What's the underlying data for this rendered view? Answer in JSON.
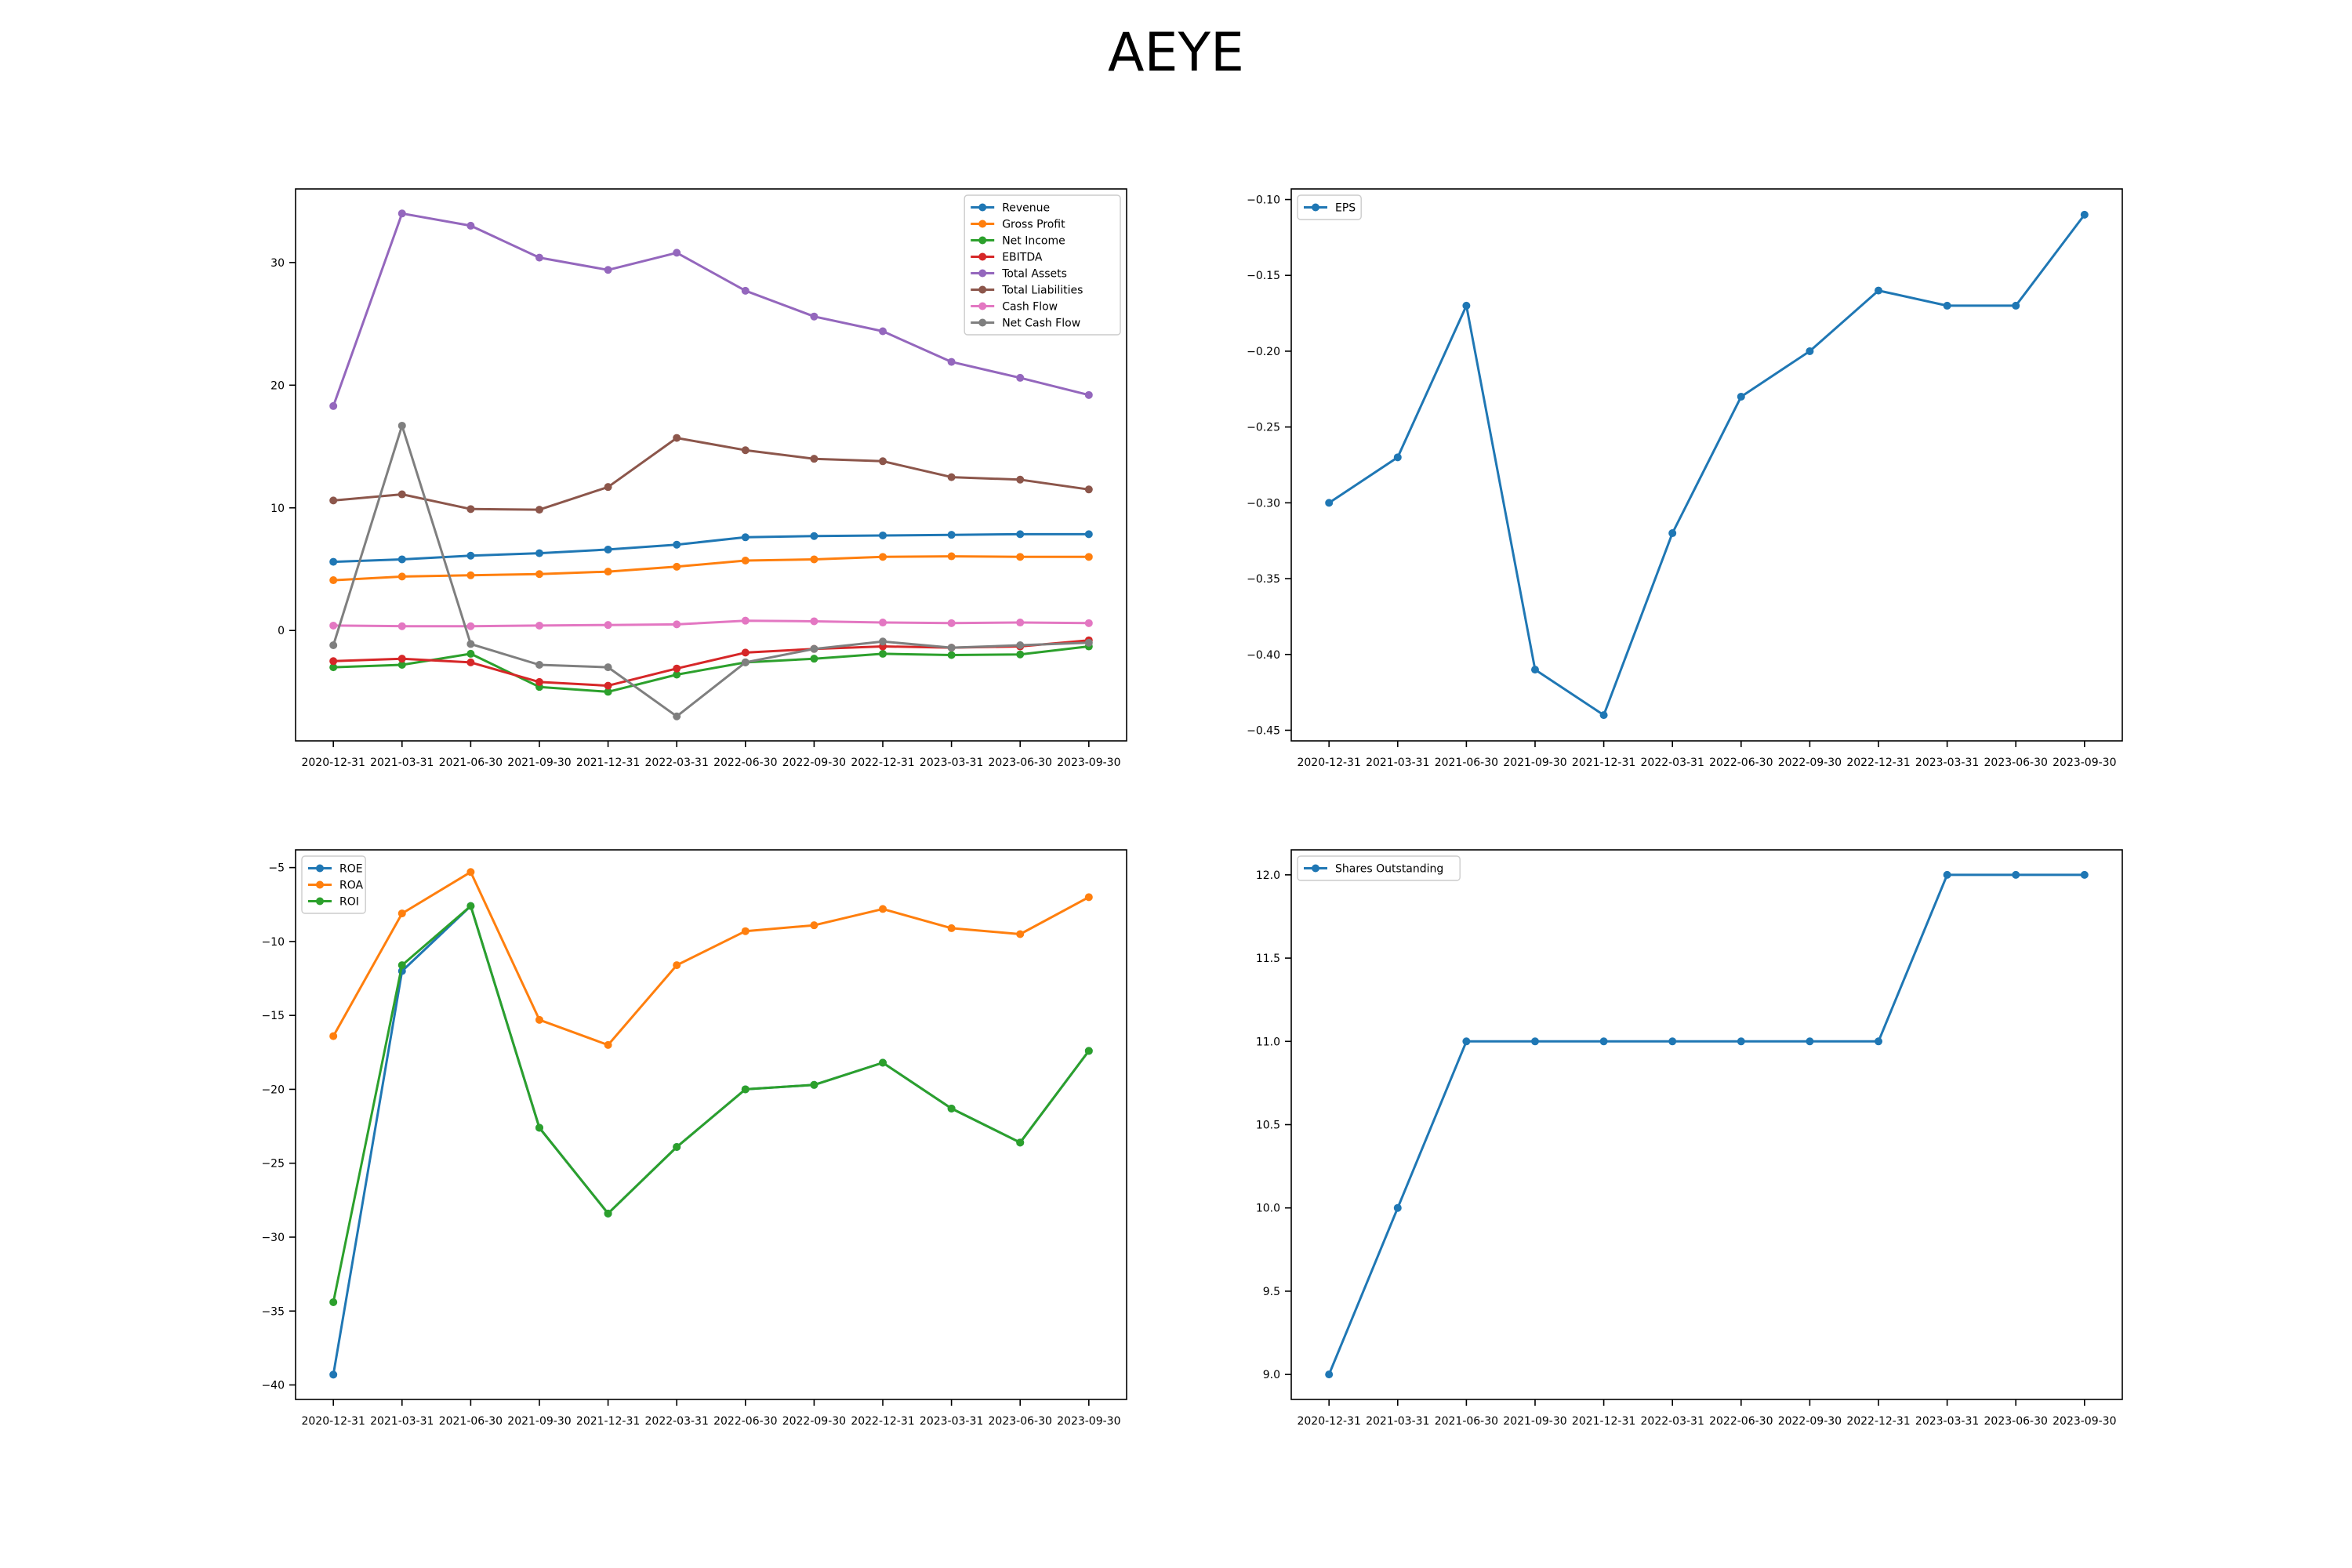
{
  "title": "AEYE",
  "colors": {
    "C0": "#1f77b4",
    "C1": "#ff7f0e",
    "C2": "#2ca02c",
    "C3": "#d62728",
    "C4": "#9467bd",
    "C5": "#8c564b",
    "C6": "#e377c2",
    "C7": "#7f7f7f"
  },
  "chart_data": [
    {
      "type": "line",
      "x": [
        "2020-12-31",
        "2021-03-31",
        "2021-06-30",
        "2021-09-30",
        "2021-12-31",
        "2022-03-31",
        "2022-06-30",
        "2022-09-30",
        "2022-12-31",
        "2023-03-31",
        "2023-06-30",
        "2023-09-30"
      ],
      "ylim": [
        -9.0,
        36.0
      ],
      "yticks": [
        0,
        10,
        20,
        30
      ],
      "legend": "top-right",
      "grid": false,
      "series": [
        {
          "name": "Revenue",
          "color": "C0",
          "values": [
            5.6,
            5.8,
            6.1,
            6.3,
            6.6,
            7.0,
            7.6,
            7.7,
            7.75,
            7.8,
            7.85,
            7.85
          ]
        },
        {
          "name": "Gross Profit",
          "color": "C1",
          "values": [
            4.1,
            4.4,
            4.5,
            4.6,
            4.8,
            5.2,
            5.7,
            5.8,
            6.0,
            6.05,
            6.0,
            6.0
          ]
        },
        {
          "name": "Net Income",
          "color": "C2",
          "values": [
            -3.0,
            -2.8,
            -1.9,
            -4.6,
            -5.0,
            -3.6,
            -2.6,
            -2.3,
            -1.9,
            -2.0,
            -1.95,
            -1.3
          ]
        },
        {
          "name": "EBITDA",
          "color": "C3",
          "values": [
            -2.5,
            -2.3,
            -2.6,
            -4.2,
            -4.5,
            -3.1,
            -1.8,
            -1.5,
            -1.3,
            -1.4,
            -1.3,
            -0.8
          ]
        },
        {
          "name": "Total Assets",
          "color": "C4",
          "values": [
            18.3,
            34.0,
            33.0,
            30.4,
            29.4,
            30.8,
            27.7,
            25.6,
            24.4,
            21.9,
            20.6,
            19.2
          ]
        },
        {
          "name": "Total Liabilities",
          "color": "C5",
          "values": [
            10.6,
            11.1,
            9.9,
            9.85,
            11.7,
            15.7,
            14.7,
            14.0,
            13.8,
            12.5,
            12.3,
            11.5
          ]
        },
        {
          "name": "Cash Flow",
          "color": "C6",
          "values": [
            0.4,
            0.35,
            0.35,
            0.4,
            0.45,
            0.5,
            0.8,
            0.75,
            0.65,
            0.6,
            0.65,
            0.6
          ]
        },
        {
          "name": "Net Cash Flow",
          "color": "C7",
          "values": [
            -1.2,
            16.7,
            -1.1,
            -2.8,
            -3.0,
            -7.0,
            -2.6,
            -1.5,
            -0.9,
            -1.4,
            -1.2,
            -1.0
          ]
        }
      ]
    },
    {
      "type": "line",
      "x": [
        "2020-12-31",
        "2021-03-31",
        "2021-06-30",
        "2021-09-30",
        "2021-12-31",
        "2022-03-31",
        "2022-06-30",
        "2022-09-30",
        "2022-12-31",
        "2023-03-31",
        "2023-06-30",
        "2023-09-30"
      ],
      "ylim": [
        -0.457,
        -0.093
      ],
      "yticks": [
        -0.45,
        -0.4,
        -0.35,
        -0.3,
        -0.25,
        -0.2,
        -0.15,
        -0.1
      ],
      "tick_decimals": 2,
      "legend": "top-left",
      "grid": false,
      "series": [
        {
          "name": "EPS",
          "color": "C0",
          "values": [
            -0.3,
            -0.27,
            -0.17,
            -0.41,
            -0.44,
            -0.32,
            -0.23,
            -0.2,
            -0.16,
            -0.17,
            -0.17,
            -0.11
          ]
        }
      ]
    },
    {
      "type": "line",
      "x": [
        "2020-12-31",
        "2021-03-31",
        "2021-06-30",
        "2021-09-30",
        "2021-12-31",
        "2022-03-31",
        "2022-06-30",
        "2022-09-30",
        "2022-12-31",
        "2023-03-31",
        "2023-06-30",
        "2023-09-30"
      ],
      "ylim": [
        -40.98,
        -3.8
      ],
      "yticks": [
        -40,
        -35,
        -30,
        -25,
        -20,
        -15,
        -10,
        -5
      ],
      "legend": "top-left",
      "grid": false,
      "series": [
        {
          "name": "ROE",
          "color": "C0",
          "values": [
            -39.3,
            -12.0,
            -7.6,
            -22.6,
            -28.4,
            -23.9,
            -20.0,
            -19.7,
            -18.2,
            -21.3,
            -23.6,
            -17.4
          ]
        },
        {
          "name": "ROA",
          "color": "C1",
          "values": [
            -16.4,
            -8.1,
            -5.3,
            -15.3,
            -17.0,
            -11.6,
            -9.3,
            -8.9,
            -7.8,
            -9.1,
            -9.5,
            -7.0
          ]
        },
        {
          "name": "ROI",
          "color": "C2",
          "values": [
            -34.4,
            -11.6,
            -7.6,
            -22.6,
            -28.4,
            -23.9,
            -20.0,
            -19.7,
            -18.2,
            -21.3,
            -23.6,
            -17.4
          ]
        }
      ]
    },
    {
      "type": "line",
      "x": [
        "2020-12-31",
        "2021-03-31",
        "2021-06-30",
        "2021-09-30",
        "2021-12-31",
        "2022-03-31",
        "2022-06-30",
        "2022-09-30",
        "2022-12-31",
        "2023-03-31",
        "2023-06-30",
        "2023-09-30"
      ],
      "ylim": [
        8.85,
        12.15
      ],
      "yticks": [
        9.0,
        9.5,
        10.0,
        10.5,
        11.0,
        11.5,
        12.0
      ],
      "tick_decimals": 1,
      "legend": "top-left",
      "grid": false,
      "series": [
        {
          "name": "Shares Outstanding",
          "color": "C0",
          "values": [
            9,
            10,
            11,
            11,
            11,
            11,
            11,
            11,
            11,
            12,
            12,
            12
          ]
        }
      ]
    }
  ]
}
